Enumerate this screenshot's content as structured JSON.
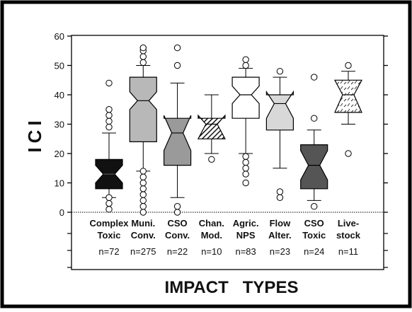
{
  "chart_data": {
    "type": "boxplot",
    "ylabel": "ICI",
    "xlabel": "IMPACT   TYPES",
    "ylim": [
      0,
      60
    ],
    "yticks": [
      0,
      10,
      20,
      30,
      40,
      50,
      60
    ],
    "reference_line": 0,
    "categories": [
      {
        "line1": "Complex",
        "line2": "Toxic",
        "n": "n=72",
        "fill": "#111111",
        "q1": 8,
        "median": 13,
        "q3": 18,
        "notch_lo": 10,
        "notch_hi": 16,
        "wlo": 5,
        "whi": 27,
        "outliers": [
          1,
          3,
          5,
          29,
          31,
          33,
          35,
          44
        ]
      },
      {
        "line1": "Muni.",
        "line2": "Conv.",
        "n": "n=275",
        "fill": "#b8b8b8",
        "q1": 24,
        "median": 38,
        "q3": 46,
        "notch_lo": 35,
        "notch_hi": 41,
        "wlo": 14,
        "whi": 50,
        "outliers": [
          0,
          2,
          4,
          6,
          8,
          10,
          12,
          14,
          51,
          53,
          55,
          56
        ]
      },
      {
        "line1": "CSO",
        "line2": "Conv.",
        "n": "n=22",
        "fill": "#9a9a9a",
        "q1": 16,
        "median": 27,
        "q3": 32,
        "notch_lo": 21,
        "notch_hi": 33,
        "wlo": 5,
        "whi": 44,
        "outliers": [
          0,
          2,
          50,
          56
        ]
      },
      {
        "line1": "Chan.",
        "line2": "Mod.",
        "n": "n=10",
        "fill": "hatch",
        "q1": 25,
        "median": 30,
        "q3": 32,
        "notch_lo": 25,
        "notch_hi": 33,
        "wlo": 20,
        "whi": 40,
        "outliers": [
          18
        ]
      },
      {
        "line1": "Agric.",
        "line2": "NPS",
        "n": "n=83",
        "fill": "#ffffff",
        "q1": 32,
        "median": 40,
        "q3": 46,
        "notch_lo": 37,
        "notch_hi": 43,
        "wlo": 20,
        "whi": 49,
        "outliers": [
          10,
          13,
          15,
          17,
          19,
          50,
          52
        ]
      },
      {
        "line1": "Flow",
        "line2": "Alter.",
        "n": "n=23",
        "fill": "#d8d8d8",
        "q1": 28,
        "median": 37,
        "q3": 40,
        "notch_lo": 32,
        "notch_hi": 41,
        "wlo": 15,
        "whi": 46,
        "outliers": [
          5,
          7,
          48
        ]
      },
      {
        "line1": "CSO",
        "line2": "Toxic",
        "n": "n=24",
        "fill": "#555555",
        "q1": 8,
        "median": 16,
        "q3": 23,
        "notch_lo": 11,
        "notch_hi": 21,
        "wlo": 4,
        "whi": 28,
        "outliers": [
          2,
          32,
          46
        ]
      },
      {
        "line1": "Live-",
        "line2": "stock",
        "n": "n=11",
        "fill": "pattern",
        "q1": 34,
        "median": 40,
        "q3": 45,
        "notch_lo": 34,
        "notch_hi": 45,
        "wlo": 30,
        "whi": 48,
        "outliers": [
          20,
          50
        ]
      }
    ]
  }
}
